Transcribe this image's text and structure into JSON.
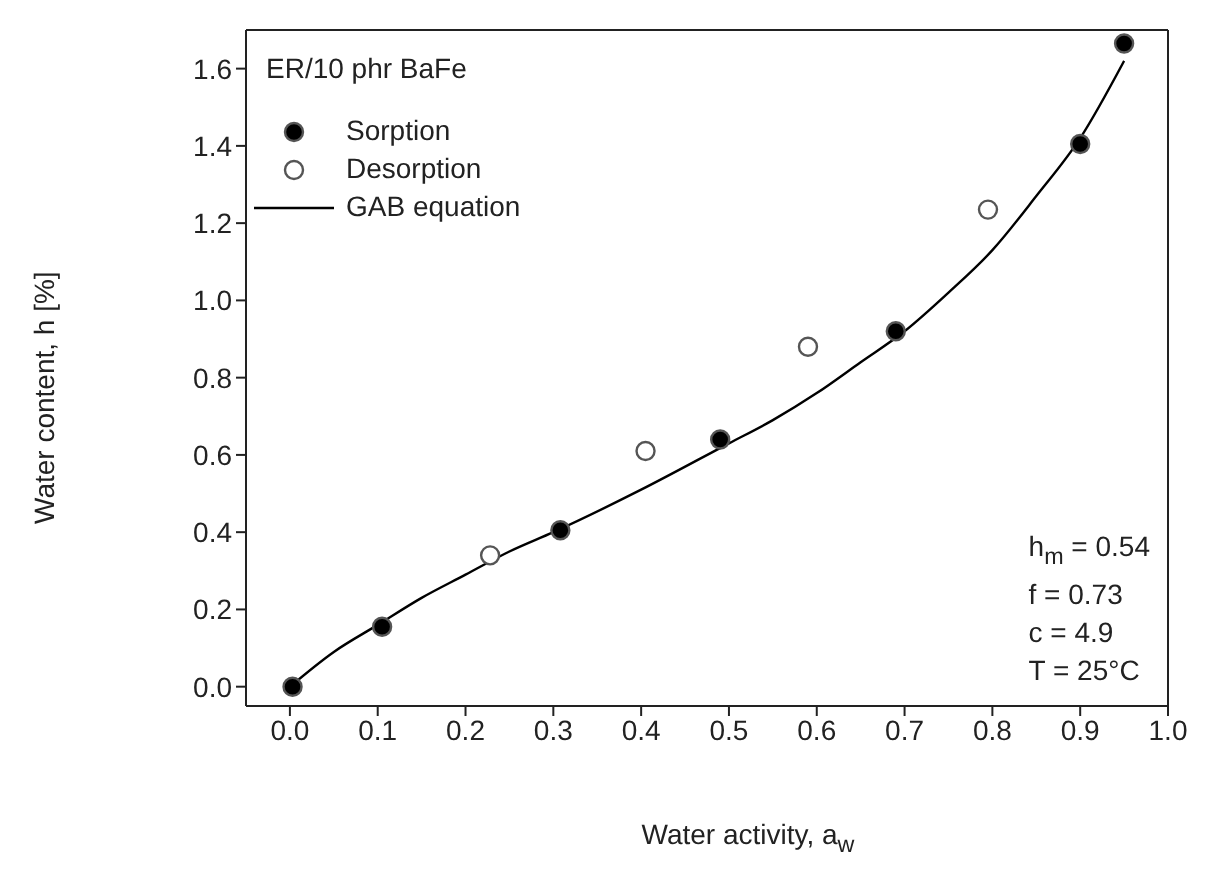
{
  "chart_data": {
    "type": "scatter",
    "xlabel": "Water activity, a$_{w}$",
    "ylabel": "Water content, h [%]",
    "xlim": [
      -0.05,
      1.0
    ],
    "ylim": [
      -0.05,
      1.7
    ],
    "xticks": [
      {
        "value": 0,
        "label": "0.0"
      },
      {
        "value": 0.1,
        "label": "0.1"
      },
      {
        "value": 0.2,
        "label": "0.2"
      },
      {
        "value": 0.3,
        "label": "0.3"
      },
      {
        "value": 0.4,
        "label": "0.4"
      },
      {
        "value": 0.5,
        "label": "0.5"
      },
      {
        "value": 0.6,
        "label": "0.6"
      },
      {
        "value": 0.7,
        "label": "0.7"
      },
      {
        "value": 0.8,
        "label": "0.8"
      },
      {
        "value": 0.9,
        "label": "0.9"
      },
      {
        "value": 1,
        "label": "1.0"
      }
    ],
    "yticks": [
      {
        "value": 0,
        "label": "0.0"
      },
      {
        "value": 0.2,
        "label": "0.2"
      },
      {
        "value": 0.4,
        "label": "0.4"
      },
      {
        "value": 0.6,
        "label": "0.6"
      },
      {
        "value": 0.8,
        "label": "0.8"
      },
      {
        "value": 1,
        "label": "1.0"
      },
      {
        "value": 1.2,
        "label": "1.2"
      },
      {
        "value": 1.4,
        "label": "1.4"
      },
      {
        "value": 1.6,
        "label": "1.6"
      }
    ],
    "legend": "top left",
    "series": [
      {
        "name": "Sorption",
        "marker": "circle",
        "color": "#000000",
        "x": [
          0.003,
          0.105,
          0.308,
          0.49,
          0.69,
          0.9,
          0.95
        ],
        "values": [
          0.0,
          0.155,
          0.405,
          0.64,
          0.92,
          1.405,
          1.665
        ]
      },
      {
        "name": "Desorption",
        "marker": "circle",
        "color": "#ffffff",
        "x": [
          0.228,
          0.405,
          0.59,
          0.795
        ],
        "values": [
          0.34,
          0.61,
          0.88,
          1.235
        ]
      },
      {
        "name": "GAB equation",
        "type": "line",
        "color": "#000000",
        "x": [
          0,
          0.05,
          0.1,
          0.15,
          0.2,
          0.25,
          0.3,
          0.4,
          0.5,
          0.55,
          0.6,
          0.65,
          0.7,
          0.75,
          0.8,
          0.85,
          0.9,
          0.95
        ],
        "values": [
          0,
          0.09,
          0.16,
          0.23,
          0.29,
          0.35,
          0.4,
          0.51,
          0.63,
          0.69,
          0.76,
          0.84,
          0.92,
          1.02,
          1.13,
          1.27,
          1.42,
          1.62
        ]
      }
    ],
    "annotations": [
      "ER/10 phr BaFe",
      "h$_{m}$ = 0.54\nf = 0.73\nc = 4.9\nT = 25°C"
    ]
  }
}
